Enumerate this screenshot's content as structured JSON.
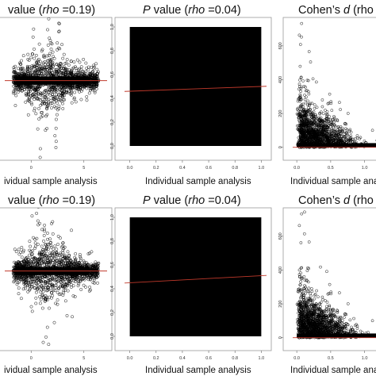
{
  "chart_data": [
    {
      "type": "scatter",
      "panel": "r1c1",
      "title": {
        "pre": "value (",
        "italic": "rho",
        "post": " =0.19)"
      },
      "xlabel": "ividual sample analysis",
      "xticks": [
        "0",
        "5"
      ],
      "yticks": [],
      "xlim": [
        -2.5,
        7.2
      ],
      "ylim": [
        -6,
        5
      ],
      "trend": {
        "slope": 0.0,
        "intercept": 0.0
      }
    },
    {
      "type": "scatter",
      "panel": "r1c2",
      "title": {
        "pre": "P",
        "pre_italic": true,
        "mid": " value (",
        "italic": "rho",
        "post": " =0.04)"
      },
      "xlabel": "Individual sample analysis",
      "xticks": [
        "0.0",
        "0.2",
        "0.4",
        "0.6",
        "0.8",
        "1.0"
      ],
      "yticks": [
        "0.0",
        "0.2",
        "0.4",
        "0.6",
        "0.8",
        "1.0"
      ],
      "xlim": [
        -0.04,
        1.04
      ],
      "ylim": [
        -0.04,
        1.04
      ],
      "trend": {
        "slope": 0.04,
        "intercept": 0.46
      }
    },
    {
      "type": "scatter",
      "panel": "r1c3",
      "title": {
        "pre": "Cohen’s ",
        "italic": "d",
        "post": " (rho"
      },
      "xlabel": "Individual sample analy",
      "xticks": [
        "0.0",
        "0.5",
        "1.0"
      ],
      "yticks": [
        "0",
        "200",
        "400",
        "600"
      ],
      "xlim": [
        -0.06,
        1.25
      ],
      "ylim": [
        -20,
        740
      ],
      "trend": {
        "slope": 0,
        "intercept": 0
      }
    },
    {
      "type": "scatter",
      "panel": "r2c1",
      "title": {
        "pre": "value (",
        "italic": "rho",
        "post": " =0.19)"
      },
      "xlabel": "ividual sample analysis",
      "xticks": [
        "0",
        "5"
      ],
      "yticks": [],
      "xlim": [
        -2.5,
        7.2
      ],
      "ylim": [
        -6,
        5
      ],
      "trend": {
        "slope": 0.0,
        "intercept": 0.0
      }
    },
    {
      "type": "scatter",
      "panel": "r2c2",
      "title": {
        "pre": "P",
        "pre_italic": true,
        "mid": " value (",
        "italic": "rho",
        "post": " =0.04)"
      },
      "xlabel": "Individual sample analysis",
      "xticks": [
        "0.0",
        "0.2",
        "0.4",
        "0.6",
        "0.8",
        "1.0"
      ],
      "yticks": [
        "0.0",
        "0.2",
        "0.4",
        "0.6",
        "0.8",
        "1.0"
      ],
      "xlim": [
        -0.04,
        1.04
      ],
      "ylim": [
        -0.04,
        1.04
      ],
      "trend": {
        "slope": 0.06,
        "intercept": 0.45
      }
    },
    {
      "type": "scatter",
      "panel": "r2c3",
      "title": {
        "pre": "Cohen’s ",
        "italic": "d",
        "post": " (rho"
      },
      "xlabel": "Individual sample analy",
      "xticks": [
        "0.0",
        "0.5",
        "1.0"
      ],
      "yticks": [
        "0",
        "200",
        "400",
        "600"
      ],
      "xlim": [
        -0.06,
        1.25
      ],
      "ylim": [
        -20,
        740
      ],
      "trend": {
        "slope": 0,
        "intercept": 0
      }
    }
  ],
  "colors": {
    "point": "#000000",
    "trend": "#c0392b",
    "frame": "#9a9a9a",
    "text": "#111111"
  }
}
